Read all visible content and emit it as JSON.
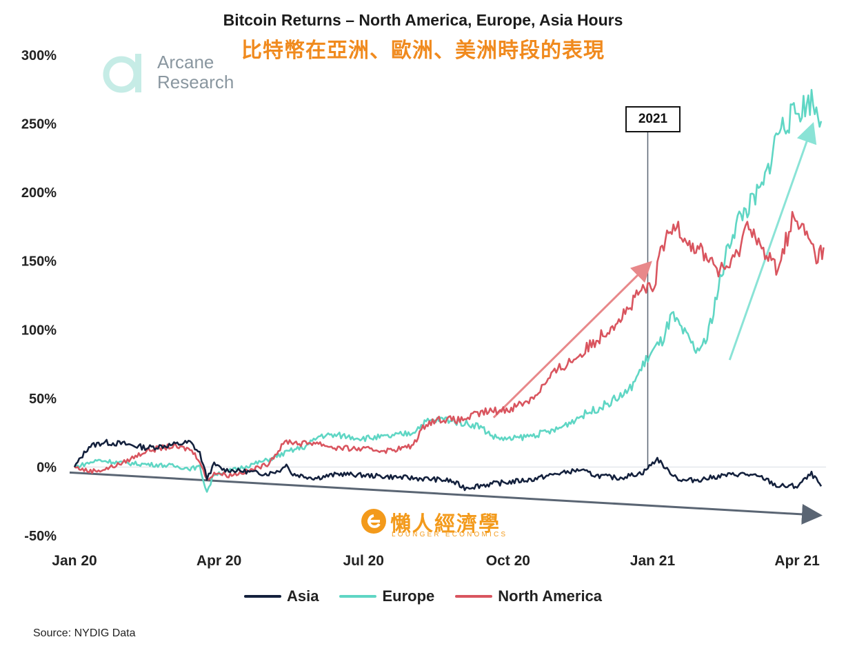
{
  "chart_data": {
    "type": "line",
    "title": "Bitcoin Returns – North America, Europe, Asia Hours",
    "subtitle": "比特幣在亞洲、歐洲、美洲時段的表現",
    "x_ticks": [
      "Jan 20",
      "Apr 20",
      "Jul 20",
      "Oct 20",
      "Jan 21",
      "Apr 21"
    ],
    "x_tick_months": [
      0,
      3,
      6,
      9,
      12,
      15
    ],
    "x_range_months": [
      0,
      15.6
    ],
    "ylim": [
      -50,
      300
    ],
    "y_ticks": [
      -50,
      0,
      50,
      100,
      150,
      200,
      250,
      300
    ],
    "y_tick_labels": [
      "-50%",
      "0%",
      "50%",
      "100%",
      "150%",
      "200%",
      "250%",
      "300%"
    ],
    "xlabel": "",
    "ylabel": "",
    "annotation": {
      "label": "2021",
      "x_month": 11.9
    },
    "series": [
      {
        "name": "Asia",
        "color": "#14213d",
        "points": [
          [
            0,
            0
          ],
          [
            0.3,
            15
          ],
          [
            0.6,
            18
          ],
          [
            1.0,
            17
          ],
          [
            1.5,
            14
          ],
          [
            2.0,
            16
          ],
          [
            2.4,
            18
          ],
          [
            2.6,
            10
          ],
          [
            2.75,
            -8
          ],
          [
            2.9,
            2
          ],
          [
            3.1,
            -2
          ],
          [
            3.5,
            -3
          ],
          [
            4.0,
            -5
          ],
          [
            4.3,
            -2
          ],
          [
            4.4,
            3
          ],
          [
            4.5,
            -5
          ],
          [
            5.0,
            -8
          ],
          [
            5.5,
            -5
          ],
          [
            6.0,
            -6
          ],
          [
            6.5,
            -7
          ],
          [
            7.0,
            -8
          ],
          [
            7.5,
            -9
          ],
          [
            7.8,
            -10
          ],
          [
            8.1,
            -15
          ],
          [
            8.5,
            -13
          ],
          [
            9.0,
            -11
          ],
          [
            9.5,
            -9
          ],
          [
            10.0,
            -5
          ],
          [
            10.5,
            -2
          ],
          [
            10.8,
            -6
          ],
          [
            11.3,
            -8
          ],
          [
            11.8,
            -4
          ],
          [
            12.1,
            6
          ],
          [
            12.3,
            -2
          ],
          [
            12.6,
            -10
          ],
          [
            13.0,
            -9
          ],
          [
            13.5,
            -6
          ],
          [
            13.9,
            -5
          ],
          [
            14.3,
            -8
          ],
          [
            14.6,
            -14
          ],
          [
            15.0,
            -14
          ],
          [
            15.3,
            -5
          ],
          [
            15.5,
            -14
          ]
        ]
      },
      {
        "name": "Europe",
        "color": "#5fd6c4",
        "points": [
          [
            0,
            0
          ],
          [
            0.5,
            5
          ],
          [
            1.0,
            3
          ],
          [
            1.5,
            2
          ],
          [
            2.0,
            1
          ],
          [
            2.4,
            -1
          ],
          [
            2.6,
            0
          ],
          [
            2.75,
            -18
          ],
          [
            2.9,
            -5
          ],
          [
            3.2,
            -3
          ],
          [
            3.5,
            0
          ],
          [
            4.0,
            5
          ],
          [
            4.5,
            12
          ],
          [
            4.8,
            15
          ],
          [
            5.1,
            23
          ],
          [
            5.5,
            23
          ],
          [
            6.0,
            21
          ],
          [
            6.5,
            22
          ],
          [
            7.0,
            25
          ],
          [
            7.3,
            33
          ],
          [
            7.7,
            35
          ],
          [
            8.1,
            32
          ],
          [
            8.4,
            30
          ],
          [
            8.7,
            22
          ],
          [
            9.0,
            20
          ],
          [
            9.5,
            23
          ],
          [
            10.0,
            27
          ],
          [
            10.5,
            37
          ],
          [
            11.0,
            45
          ],
          [
            11.5,
            55
          ],
          [
            11.9,
            80
          ],
          [
            12.2,
            92
          ],
          [
            12.4,
            110
          ],
          [
            12.6,
            100
          ],
          [
            12.9,
            85
          ],
          [
            13.1,
            90
          ],
          [
            13.3,
            120
          ],
          [
            13.6,
            165
          ],
          [
            13.8,
            182
          ],
          [
            14.0,
            190
          ],
          [
            14.3,
            205
          ],
          [
            14.6,
            245
          ],
          [
            14.9,
            255
          ],
          [
            15.1,
            262
          ],
          [
            15.3,
            268
          ],
          [
            15.5,
            252
          ]
        ]
      },
      {
        "name": "North America",
        "color": "#d9555f",
        "points": [
          [
            0,
            0
          ],
          [
            0.3,
            -3
          ],
          [
            0.6,
            -2
          ],
          [
            1.0,
            3
          ],
          [
            1.5,
            12
          ],
          [
            2.0,
            15
          ],
          [
            2.4,
            13
          ],
          [
            2.6,
            5
          ],
          [
            2.75,
            -10
          ],
          [
            2.9,
            -4
          ],
          [
            3.2,
            -6
          ],
          [
            3.6,
            -3
          ],
          [
            4.0,
            2
          ],
          [
            4.4,
            19
          ],
          [
            4.7,
            17
          ],
          [
            5.0,
            18
          ],
          [
            5.4,
            14
          ],
          [
            6.0,
            13
          ],
          [
            6.5,
            12
          ],
          [
            7.0,
            15
          ],
          [
            7.3,
            32
          ],
          [
            7.6,
            35
          ],
          [
            8.0,
            34
          ],
          [
            8.5,
            40
          ],
          [
            9.0,
            42
          ],
          [
            9.5,
            50
          ],
          [
            10.0,
            70
          ],
          [
            10.5,
            82
          ],
          [
            11.0,
            98
          ],
          [
            11.5,
            115
          ],
          [
            11.8,
            130
          ],
          [
            12.0,
            128
          ],
          [
            12.2,
            160
          ],
          [
            12.5,
            178
          ],
          [
            12.8,
            162
          ],
          [
            13.1,
            155
          ],
          [
            13.4,
            142
          ],
          [
            13.7,
            150
          ],
          [
            14.0,
            180
          ],
          [
            14.3,
            155
          ],
          [
            14.6,
            145
          ],
          [
            14.9,
            180
          ],
          [
            15.2,
            170
          ],
          [
            15.4,
            152
          ],
          [
            15.55,
            160
          ]
        ]
      }
    ],
    "trend_arrows": [
      {
        "name": "North America trend",
        "color": "#e8888a",
        "from": [
          8.7,
          36
        ],
        "to": [
          11.9,
          147
        ]
      },
      {
        "name": "Europe trend",
        "color": "#8ae3d6",
        "from": [
          13.6,
          78
        ],
        "to": [
          15.3,
          247
        ]
      },
      {
        "name": "Asia trend",
        "color": "#5a6573",
        "from": [
          -0.1,
          -4
        ],
        "to": [
          15.4,
          -35
        ]
      }
    ]
  },
  "branding": {
    "logo_label": "Arcane\nResearch",
    "logo_line1": "Arcane",
    "logo_line2": "Research",
    "watermark_main": "懶人經濟學",
    "watermark_sub": "LOUNGER ECONOMICS",
    "logo_color": "#c6ece6"
  },
  "legend": {
    "items": [
      {
        "label": "Asia",
        "color": "#14213d"
      },
      {
        "label": "Europe",
        "color": "#5fd6c4"
      },
      {
        "label": "North America",
        "color": "#d9555f"
      }
    ]
  },
  "footer": {
    "source": "Source: NYDIG Data"
  }
}
